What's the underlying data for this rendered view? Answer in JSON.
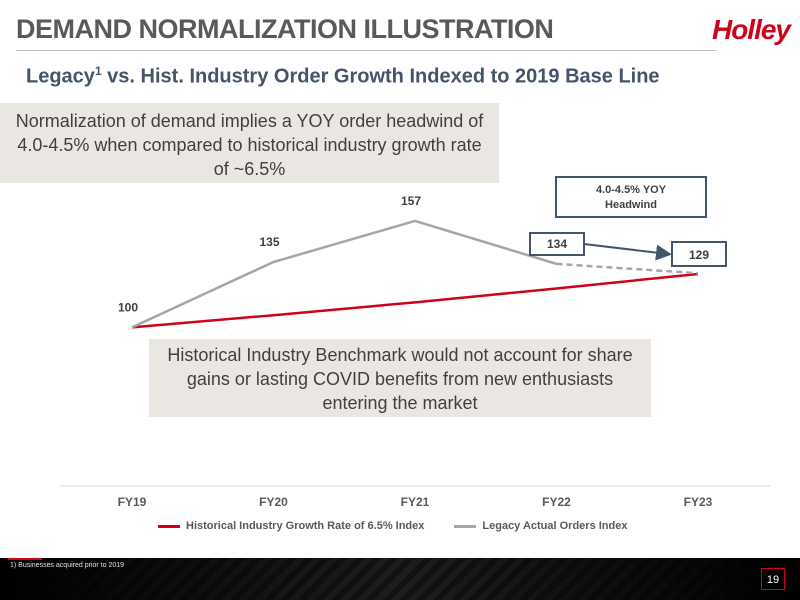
{
  "header": {
    "title": "DEMAND NORMALIZATION ILLUSTRATION",
    "logo": "Holley",
    "subtitle_main": "Legacy",
    "subtitle_sup": "1",
    "subtitle_rest": " vs. Hist. Industry Order Growth Indexed to 2019 Base Line"
  },
  "callouts": {
    "top": "Normalization of demand implies a YOY order headwind of 4.0-4.5% when compared to historical industry growth rate of ~6.5%",
    "middle": "Historical Industry Benchmark would not account for share gains or lasting COVID benefits from new enthusiasts entering the market",
    "headwind_line1": "4.0-4.5% YOY",
    "headwind_line2": "Headwind"
  },
  "chart_data": {
    "type": "line",
    "categories": [
      "FY19",
      "FY20",
      "FY21",
      "FY22",
      "FY23"
    ],
    "series": [
      {
        "name": "Historical Industry Growth Rate of 6.5% Index",
        "color": "#d0021b",
        "values": [
          100,
          106.5,
          113.4,
          120.8,
          128.6
        ]
      },
      {
        "name": "Legacy Actual Orders Index",
        "color": "#a6a6a6",
        "values": [
          100,
          135,
          157,
          134,
          null
        ]
      }
    ],
    "projection": {
      "from_label": "FY22",
      "to_label": "FY23",
      "from_value": 134,
      "to_value": 129
    },
    "data_labels": [
      {
        "category": "FY19",
        "text": "100"
      },
      {
        "category": "FY20",
        "text": "135"
      },
      {
        "category": "FY21",
        "text": "157"
      },
      {
        "category": "FY22",
        "text": "134"
      },
      {
        "category": "FY23",
        "text": "129"
      }
    ],
    "ylim": [
      90,
      165
    ],
    "colors": {
      "boxed_label_border": "#44546a",
      "arrow": "#44546a"
    }
  },
  "footer": {
    "footnote": "1)    Businesses acquired prior to 2019",
    "page": "19"
  }
}
